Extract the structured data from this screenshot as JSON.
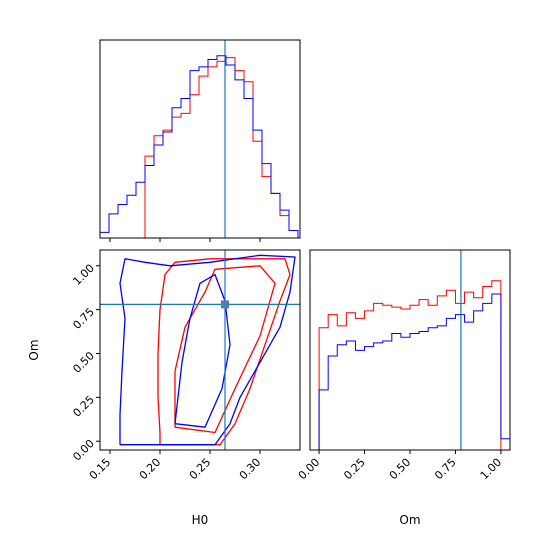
{
  "chart_data": {
    "type": "corner",
    "params": [
      "H0",
      "Om"
    ],
    "truth": {
      "H0": 0.265,
      "Om": 0.78
    },
    "colors": {
      "series_a": "#ff0000",
      "series_b": "#0000ff",
      "truth": "#1f77b4"
    },
    "panels": [
      {
        "id": "h0-marginal",
        "type": "histogram",
        "xlim": [
          0.14,
          0.34
        ],
        "xticks": [
          0.15,
          0.2,
          0.25,
          0.3
        ],
        "xlabel": "",
        "tick_labels_shown": false,
        "ylim": [
          0,
          1
        ],
        "bin_edges": [
          0.14,
          0.149,
          0.158,
          0.167,
          0.176,
          0.185,
          0.194,
          0.203,
          0.212,
          0.221,
          0.23,
          0.239,
          0.248,
          0.257,
          0.266,
          0.275,
          0.284,
          0.293,
          0.302,
          0.311,
          0.32,
          0.329,
          0.338
        ],
        "series": [
          {
            "name": "",
            "color": "#ff0000",
            "values": [
              0,
              0,
              0,
              0,
              0,
              0.44,
              0.55,
              0.58,
              0.65,
              0.67,
              0.77,
              0.87,
              0.92,
              0.95,
              0.97,
              0.9,
              0.84,
              0.52,
              0.33,
              0.24,
              0.12,
              0.04
            ]
          },
          {
            "name": "",
            "color": "#0000ff",
            "values": [
              0.03,
              0.13,
              0.18,
              0.23,
              0.3,
              0.39,
              0.5,
              0.57,
              0.7,
              0.75,
              0.9,
              0.92,
              0.96,
              0.98,
              0.93,
              0.85,
              0.75,
              0.58,
              0.4,
              0.24,
              0.15,
              0.04
            ]
          }
        ]
      },
      {
        "id": "h0-om-contour",
        "type": "contour",
        "xlim": [
          0.14,
          0.34
        ],
        "ylim": [
          -0.05,
          1.09
        ],
        "xticks": [
          0.15,
          0.2,
          0.25,
          0.3
        ],
        "yticks": [
          0.0,
          0.25,
          0.5,
          0.75,
          1.0
        ],
        "xtick_labels": [
          "0.15",
          "0.20",
          "0.25",
          "0.30"
        ],
        "ytick_labels": [
          "0.00",
          "0.25",
          "0.50",
          "0.75",
          "1.00"
        ],
        "xlabel": "H0",
        "ylabel": "Om",
        "contours": [
          {
            "color": "#ff0000",
            "level": "outer",
            "points": [
              [
                0.2,
                -0.02
              ],
              [
                0.26,
                -0.02
              ],
              [
                0.275,
                0.1
              ],
              [
                0.29,
                0.3
              ],
              [
                0.305,
                0.55
              ],
              [
                0.32,
                0.8
              ],
              [
                0.33,
                0.95
              ],
              [
                0.325,
                1.04
              ],
              [
                0.25,
                1.04
              ],
              [
                0.215,
                1.02
              ],
              [
                0.205,
                0.95
              ],
              [
                0.2,
                0.75
              ],
              [
                0.198,
                0.5
              ],
              [
                0.198,
                0.25
              ],
              [
                0.2,
                0.05
              ],
              [
                0.2,
                -0.02
              ]
            ]
          },
          {
            "color": "#ff0000",
            "level": "inner",
            "points": [
              [
                0.215,
                0.08
              ],
              [
                0.255,
                0.05
              ],
              [
                0.275,
                0.3
              ],
              [
                0.3,
                0.6
              ],
              [
                0.315,
                0.9
              ],
              [
                0.3,
                1.0
              ],
              [
                0.255,
                0.98
              ],
              [
                0.245,
                0.85
              ],
              [
                0.225,
                0.65
              ],
              [
                0.215,
                0.4
              ],
              [
                0.215,
                0.08
              ]
            ]
          },
          {
            "color": "#0000ff",
            "level": "outer",
            "points": [
              [
                0.16,
                -0.02
              ],
              [
                0.255,
                -0.02
              ],
              [
                0.27,
                0.1
              ],
              [
                0.28,
                0.25
              ],
              [
                0.3,
                0.45
              ],
              [
                0.32,
                0.65
              ],
              [
                0.33,
                0.85
              ],
              [
                0.335,
                1.05
              ],
              [
                0.3,
                1.06
              ],
              [
                0.25,
                1.02
              ],
              [
                0.21,
                1.0
              ],
              [
                0.185,
                1.02
              ],
              [
                0.165,
                1.04
              ],
              [
                0.16,
                0.9
              ],
              [
                0.165,
                0.7
              ],
              [
                0.162,
                0.4
              ],
              [
                0.16,
                0.15
              ],
              [
                0.16,
                -0.02
              ]
            ]
          },
          {
            "color": "#0000ff",
            "level": "inner",
            "points": [
              [
                0.215,
                0.1
              ],
              [
                0.245,
                0.08
              ],
              [
                0.262,
                0.3
              ],
              [
                0.27,
                0.55
              ],
              [
                0.265,
                0.8
              ],
              [
                0.255,
                0.95
              ],
              [
                0.24,
                0.9
              ],
              [
                0.23,
                0.7
              ],
              [
                0.222,
                0.45
              ],
              [
                0.215,
                0.1
              ]
            ]
          }
        ]
      },
      {
        "id": "om-marginal",
        "type": "histogram",
        "xlim": [
          -0.05,
          1.05
        ],
        "xticks": [
          0.0,
          0.25,
          0.5,
          0.75,
          1.0
        ],
        "xtick_labels": [
          "0.00",
          "0.25",
          "0.50",
          "0.75",
          "1.00"
        ],
        "xlabel": "Om",
        "ylim": [
          0,
          1
        ],
        "bin_edges": [
          -0.05,
          0.0,
          0.05,
          0.1,
          0.15,
          0.2,
          0.25,
          0.3,
          0.35,
          0.4,
          0.45,
          0.5,
          0.55,
          0.6,
          0.65,
          0.7,
          0.75,
          0.8,
          0.85,
          0.9,
          0.95,
          1.0,
          1.05
        ],
        "series": [
          {
            "name": "",
            "color": "#ff0000",
            "values": [
              0,
              0.65,
              0.72,
              0.66,
              0.73,
              0.7,
              0.74,
              0.78,
              0.77,
              0.76,
              0.75,
              0.77,
              0.8,
              0.77,
              0.82,
              0.85,
              0.78,
              0.84,
              0.81,
              0.87,
              0.9,
              0
            ]
          },
          {
            "name": "",
            "color": "#0000ff",
            "values": [
              0,
              0.32,
              0.5,
              0.56,
              0.58,
              0.53,
              0.55,
              0.57,
              0.58,
              0.62,
              0.6,
              0.62,
              0.63,
              0.65,
              0.66,
              0.7,
              0.72,
              0.68,
              0.74,
              0.78,
              0.83,
              0.06
            ]
          }
        ]
      }
    ]
  }
}
